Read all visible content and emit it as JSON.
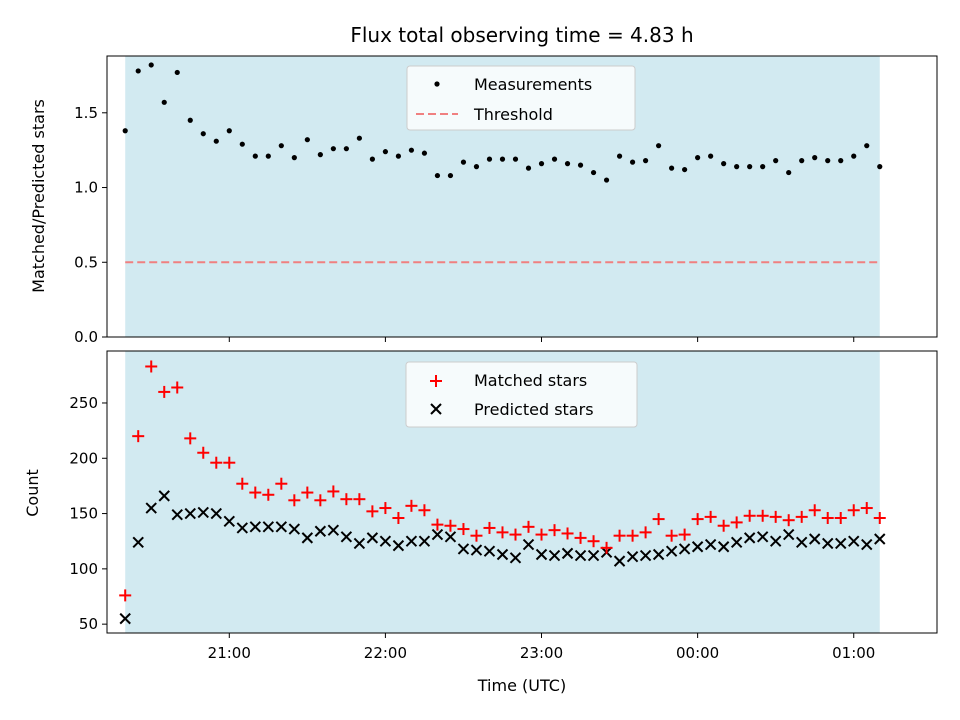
{
  "chart_data": [
    {
      "type": "scatter",
      "title": "Flux total observing time = 4.83 h",
      "xlabel": "",
      "ylabel": "Matched/Predicted stars",
      "xlim": [
        "20:13",
        "01:32"
      ],
      "ylim": [
        0,
        1.88
      ],
      "yticks": [
        0.0,
        0.5,
        1.0,
        1.5
      ],
      "ytick_labels": [
        "0.0",
        "0.5",
        "1.0",
        "1.5"
      ],
      "observing_span": [
        "20:20",
        "01:10"
      ],
      "observing_span_color": "#add8e6",
      "grid": false,
      "legend": "upper center",
      "series": [
        {
          "name": "Measurements",
          "marker": "point",
          "color": "#000000",
          "x": [
            "20:20",
            "20:25",
            "20:30",
            "20:35",
            "20:40",
            "20:45",
            "20:50",
            "20:55",
            "21:00",
            "21:05",
            "21:10",
            "21:15",
            "21:20",
            "21:25",
            "21:30",
            "21:35",
            "21:40",
            "21:45",
            "21:50",
            "21:55",
            "22:00",
            "22:05",
            "22:10",
            "22:15",
            "22:20",
            "22:25",
            "22:30",
            "22:35",
            "22:40",
            "22:45",
            "22:50",
            "22:55",
            "23:00",
            "23:05",
            "23:10",
            "23:15",
            "23:20",
            "23:25",
            "23:30",
            "23:35",
            "23:40",
            "23:45",
            "23:50",
            "23:55",
            "00:00",
            "00:05",
            "00:10",
            "00:15",
            "00:20",
            "00:25",
            "00:30",
            "00:35",
            "00:40",
            "00:45",
            "00:50",
            "00:55",
            "01:00",
            "01:05",
            "01:10"
          ],
          "y": [
            1.38,
            1.78,
            1.82,
            1.57,
            1.77,
            1.45,
            1.36,
            1.31,
            1.38,
            1.29,
            1.21,
            1.21,
            1.28,
            1.2,
            1.32,
            1.22,
            1.26,
            1.26,
            1.33,
            1.19,
            1.24,
            1.21,
            1.25,
            1.23,
            1.08,
            1.08,
            1.17,
            1.14,
            1.19,
            1.19,
            1.19,
            1.13,
            1.16,
            1.19,
            1.16,
            1.15,
            1.1,
            1.05,
            1.21,
            1.17,
            1.18,
            1.28,
            1.13,
            1.12,
            1.2,
            1.21,
            1.16,
            1.14,
            1.14,
            1.14,
            1.18,
            1.1,
            1.18,
            1.2,
            1.18,
            1.18,
            1.21,
            1.28,
            1.14
          ]
        },
        {
          "name": "Threshold",
          "marker": "dashed-line",
          "color": "#f08080",
          "x": [
            "20:20",
            "01:10"
          ],
          "y": [
            0.5,
            0.5
          ]
        }
      ]
    },
    {
      "type": "scatter",
      "title": "",
      "xlabel": "Time (UTC)",
      "ylabel": "Count",
      "xlim": [
        "20:13",
        "01:32"
      ],
      "ylim": [
        42,
        297
      ],
      "yticks": [
        50,
        100,
        150,
        200,
        250
      ],
      "ytick_labels": [
        "50",
        "100",
        "150",
        "200",
        "250"
      ],
      "xticks": [
        "21:00",
        "22:00",
        "23:00",
        "00:00",
        "01:00"
      ],
      "xtick_labels": [
        "21:00",
        "22:00",
        "23:00",
        "00:00",
        "01:00"
      ],
      "observing_span": [
        "20:20",
        "01:10"
      ],
      "observing_span_color": "#add8e6",
      "grid": false,
      "legend": "upper center",
      "series": [
        {
          "name": "Matched stars",
          "marker": "plus",
          "color": "#ff0000",
          "x": [
            "20:20",
            "20:25",
            "20:30",
            "20:35",
            "20:40",
            "20:45",
            "20:50",
            "20:55",
            "21:00",
            "21:05",
            "21:10",
            "21:15",
            "21:20",
            "21:25",
            "21:30",
            "21:35",
            "21:40",
            "21:45",
            "21:50",
            "21:55",
            "22:00",
            "22:05",
            "22:10",
            "22:15",
            "22:20",
            "22:25",
            "22:30",
            "22:35",
            "22:40",
            "22:45",
            "22:50",
            "22:55",
            "23:00",
            "23:05",
            "23:10",
            "23:15",
            "23:20",
            "23:25",
            "23:30",
            "23:35",
            "23:40",
            "23:45",
            "23:50",
            "23:55",
            "00:00",
            "00:05",
            "00:10",
            "00:15",
            "00:20",
            "00:25",
            "00:30",
            "00:35",
            "00:40",
            "00:45",
            "00:50",
            "00:55",
            "01:00",
            "01:05",
            "01:10"
          ],
          "y": [
            76,
            220,
            283,
            260,
            264,
            218,
            205,
            196,
            196,
            177,
            169,
            167,
            177,
            162,
            169,
            162,
            170,
            163,
            163,
            152,
            155,
            146,
            157,
            153,
            140,
            139,
            136,
            130,
            137,
            133,
            131,
            138,
            131,
            135,
            132,
            128,
            125,
            119,
            130,
            130,
            133,
            145,
            130,
            131,
            145,
            147,
            139,
            142,
            148,
            148,
            147,
            144,
            147,
            153,
            146,
            146,
            153,
            155,
            146
          ]
        },
        {
          "name": "Predicted stars",
          "marker": "x",
          "color": "#000000",
          "x": [
            "20:20",
            "20:25",
            "20:30",
            "20:35",
            "20:40",
            "20:45",
            "20:50",
            "20:55",
            "21:00",
            "21:05",
            "21:10",
            "21:15",
            "21:20",
            "21:25",
            "21:30",
            "21:35",
            "21:40",
            "21:45",
            "21:50",
            "21:55",
            "22:00",
            "22:05",
            "22:10",
            "22:15",
            "22:20",
            "22:25",
            "22:30",
            "22:35",
            "22:40",
            "22:45",
            "22:50",
            "22:55",
            "23:00",
            "23:05",
            "23:10",
            "23:15",
            "23:20",
            "23:25",
            "23:30",
            "23:35",
            "23:40",
            "23:45",
            "23:50",
            "23:55",
            "00:00",
            "00:05",
            "00:10",
            "00:15",
            "00:20",
            "00:25",
            "00:30",
            "00:35",
            "00:40",
            "00:45",
            "00:50",
            "00:55",
            "01:00",
            "01:05",
            "01:10"
          ],
          "y": [
            55,
            124,
            155,
            166,
            149,
            150,
            151,
            150,
            143,
            137,
            138,
            138,
            138,
            136,
            128,
            134,
            135,
            129,
            123,
            128,
            125,
            121,
            125,
            125,
            131,
            129,
            118,
            117,
            116,
            113,
            110,
            122,
            113,
            112,
            114,
            112,
            112,
            115,
            107,
            111,
            112,
            113,
            116,
            118,
            120,
            122,
            120,
            124,
            128,
            129,
            125,
            131,
            124,
            127,
            123,
            123,
            125,
            122,
            127
          ]
        }
      ]
    }
  ]
}
